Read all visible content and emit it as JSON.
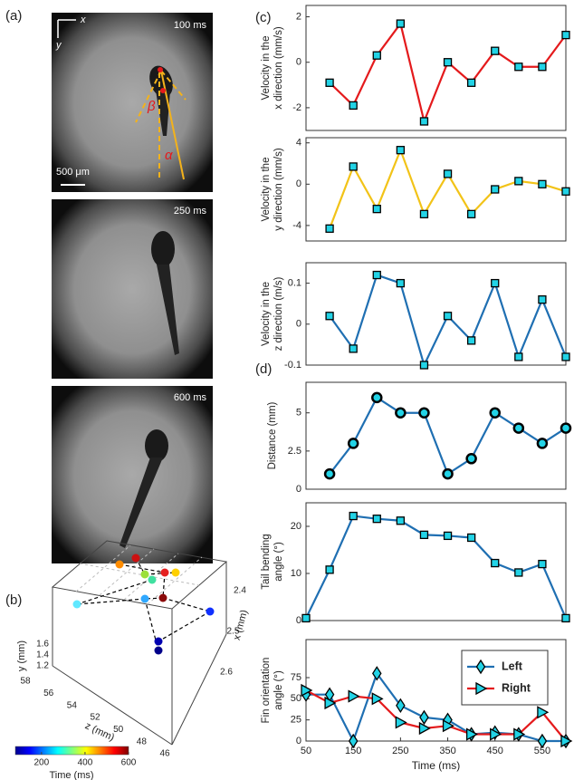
{
  "panel_labels": [
    "(a)",
    "(b)",
    "(c)",
    "(d)"
  ],
  "images": {
    "times": [
      "100 ms",
      "250 ms",
      "600 ms"
    ],
    "scale_bar": "500 μm",
    "axes": [
      "x",
      "y"
    ],
    "angles": [
      "β",
      "α"
    ]
  },
  "panel_b": {
    "ylabel": "y (mm)",
    "zlabel": "z (mm)",
    "xlabel": "x (mm)",
    "yticks": [
      1.6,
      1.4,
      1.2
    ],
    "zticks": [
      58,
      56,
      54,
      52,
      50,
      48,
      46
    ],
    "xticks": [
      2.4,
      2.5,
      2.6
    ],
    "colorbar": {
      "label": "Time (ms)",
      "clim": [
        80,
        600
      ],
      "ticks": [
        200,
        400,
        600
      ]
    }
  },
  "chart_data": [
    {
      "type": "line",
      "ylabel": [
        "Velocity in the",
        "x direction (mm/s)"
      ],
      "x": [
        100,
        150,
        200,
        250,
        300,
        350,
        400,
        450,
        500,
        550,
        600
      ],
      "xlim": [
        50,
        600
      ],
      "ylim": [
        -3,
        2.5
      ],
      "yticks": [
        -2,
        0,
        2
      ],
      "series": [
        {
          "color": "#e41a1c",
          "marker": "square",
          "values": [
            -0.9,
            -1.9,
            0.3,
            1.7,
            -2.6,
            0,
            -0.9,
            0.5,
            -0.2,
            -0.2,
            1.2
          ]
        }
      ]
    },
    {
      "type": "line",
      "ylabel": [
        "Velocity in the",
        "y direction (mm/s)"
      ],
      "x": [
        100,
        150,
        200,
        250,
        300,
        350,
        400,
        450,
        500,
        550,
        600
      ],
      "xlim": [
        50,
        600
      ],
      "ylim": [
        -5.5,
        4.5
      ],
      "yticks": [
        -4,
        0,
        4
      ],
      "series": [
        {
          "color": "#f2c318",
          "marker": "square",
          "values": [
            -4.3,
            1.7,
            -2.4,
            3.3,
            -2.9,
            1.0,
            -2.9,
            -0.5,
            0.3,
            0.0,
            -0.7
          ]
        }
      ]
    },
    {
      "type": "line",
      "ylabel": [
        "Velocity in the",
        "z direction (m/s)"
      ],
      "x": [
        100,
        150,
        200,
        250,
        300,
        350,
        400,
        450,
        500,
        550,
        600
      ],
      "xlim": [
        50,
        600
      ],
      "ylim": [
        -0.1,
        0.15
      ],
      "yticks": [
        -0.1,
        0,
        0.1
      ],
      "series": [
        {
          "color": "#1f6fb2",
          "marker": "square",
          "values": [
            0.02,
            -0.06,
            0.12,
            0.1,
            -0.1,
            0.02,
            -0.04,
            0.1,
            -0.08,
            0.06,
            -0.08
          ]
        }
      ]
    },
    {
      "type": "line",
      "ylabel": [
        "Distance (mm)"
      ],
      "x": [
        100,
        150,
        200,
        250,
        300,
        350,
        400,
        450,
        500,
        550,
        600
      ],
      "xlim": [
        50,
        600
      ],
      "ylim": [
        0,
        7
      ],
      "yticks": [
        0,
        2.5,
        5
      ],
      "series": [
        {
          "color": "#1f6fb2",
          "marker": "circle",
          "values": [
            1,
            3,
            6,
            5,
            5,
            1,
            2,
            5,
            4,
            3,
            4
          ]
        }
      ]
    },
    {
      "type": "line",
      "ylabel": [
        "Tail bending",
        "angle (°)"
      ],
      "x": [
        50,
        100,
        150,
        200,
        250,
        300,
        350,
        400,
        450,
        500,
        550,
        600
      ],
      "xlim": [
        50,
        600
      ],
      "ylim": [
        0,
        25
      ],
      "yticks": [
        0,
        10,
        20
      ],
      "series": [
        {
          "color": "#1f6fb2",
          "marker": "square",
          "values": [
            0.5,
            10.8,
            22.2,
            21.6,
            21.2,
            18.2,
            18.0,
            17.6,
            12.2,
            10.2,
            12.0,
            0.5
          ]
        }
      ]
    },
    {
      "type": "line",
      "ylabel": [
        "Fin orientation",
        "angle (°)"
      ],
      "xlabel": "Time (ms)",
      "x": [
        50,
        100,
        150,
        200,
        250,
        300,
        350,
        400,
        450,
        500,
        550,
        600
      ],
      "xlim": [
        50,
        600
      ],
      "xticks": [
        50,
        150,
        250,
        350,
        450,
        550
      ],
      "ylim": [
        0,
        120
      ],
      "yticks": [
        0,
        25,
        50,
        75
      ],
      "legend": "upper right",
      "series": [
        {
          "name": "Left",
          "color": "#1f6fb2",
          "marker": "diamond",
          "values": [
            55,
            55,
            0,
            80,
            42,
            28,
            25,
            8,
            10,
            8,
            0,
            0
          ]
        },
        {
          "name": "Right",
          "color": "#e41a1c",
          "marker": "triangle",
          "values": [
            60,
            45,
            53,
            50,
            22,
            15,
            18,
            8,
            8,
            8,
            34,
            0
          ]
        }
      ]
    }
  ]
}
